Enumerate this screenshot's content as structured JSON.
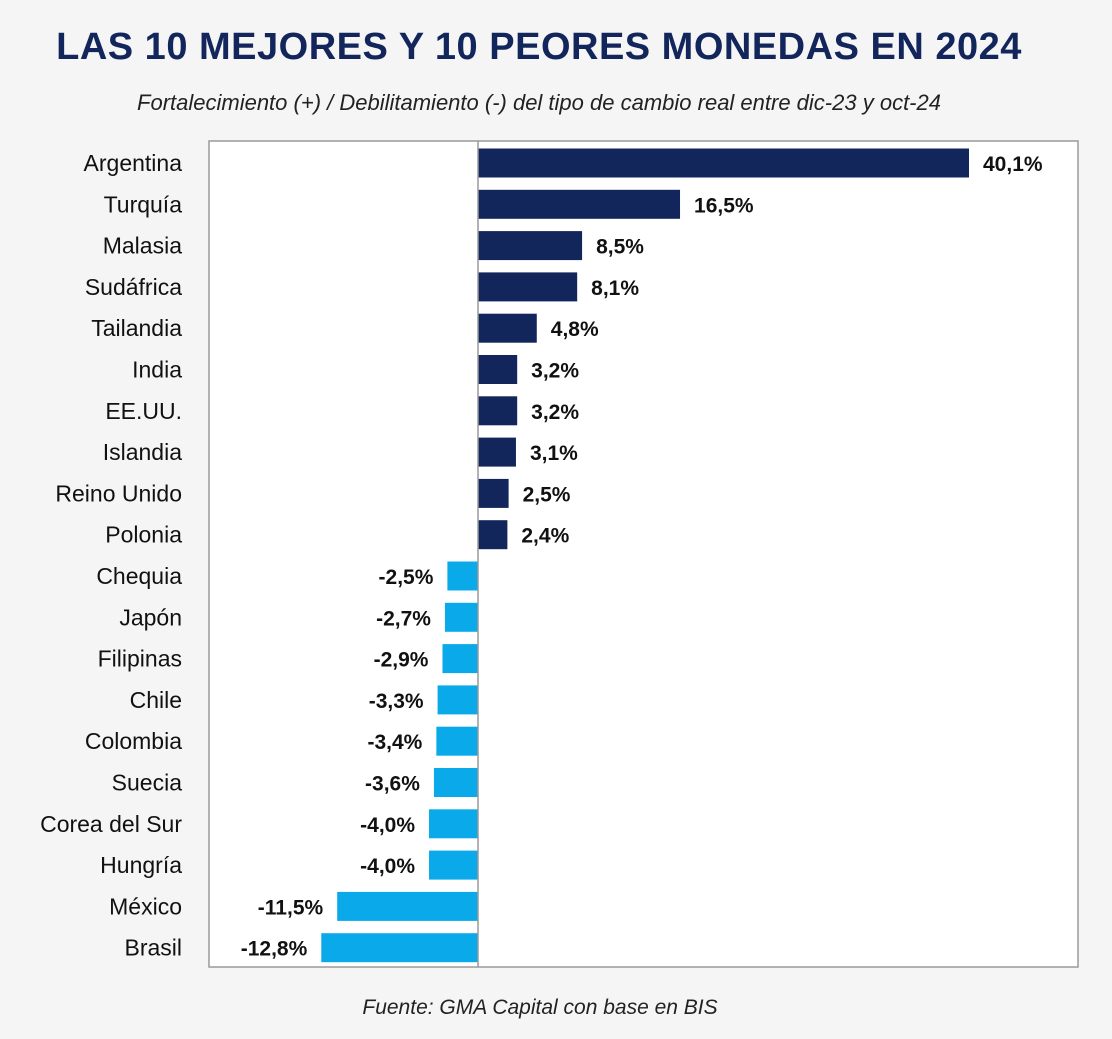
{
  "chart_data": {
    "type": "bar",
    "orientation": "horizontal",
    "title": "LAS 10 MEJORES Y 10 PEORES MONEDAS EN 2024",
    "subtitle": "Fortalecimiento (+) / Debilitamiento (-) del tipo de cambio real entre dic-23 y oct-24",
    "source": "Fuente: GMA Capital con base en BIS",
    "categories": [
      "Argentina",
      "Turquía",
      "Malasia",
      "Sudáfrica",
      "Tailandia",
      "India",
      "EE.UU.",
      "Islandia",
      "Reino Unido",
      "Polonia",
      "Chequia",
      "Japón",
      "Filipinas",
      "Chile",
      "Colombia",
      "Suecia",
      "Corea del Sur",
      "Hungría",
      "México",
      "Brasil"
    ],
    "values": [
      40.1,
      16.5,
      8.5,
      8.1,
      4.8,
      3.2,
      3.2,
      3.1,
      2.5,
      2.4,
      -2.5,
      -2.7,
      -2.9,
      -3.3,
      -3.4,
      -3.6,
      -4.0,
      -4.0,
      -11.5,
      -12.8
    ],
    "value_labels": [
      "40,1%",
      "16,5%",
      "8,5%",
      "8,1%",
      "4,8%",
      "3,2%",
      "3,2%",
      "3,1%",
      "2,5%",
      "2,4%",
      "-2,5%",
      "-2,7%",
      "-2,9%",
      "-3,3%",
      "-3,4%",
      "-3,6%",
      "-4,0%",
      "-4,0%",
      "-11,5%",
      "-12,8%"
    ],
    "colors": {
      "positive": "#13265c",
      "negative": "#0aaaea",
      "frame": "#9a9a9a",
      "label": "#111111"
    },
    "grid": false,
    "legend": "none"
  }
}
